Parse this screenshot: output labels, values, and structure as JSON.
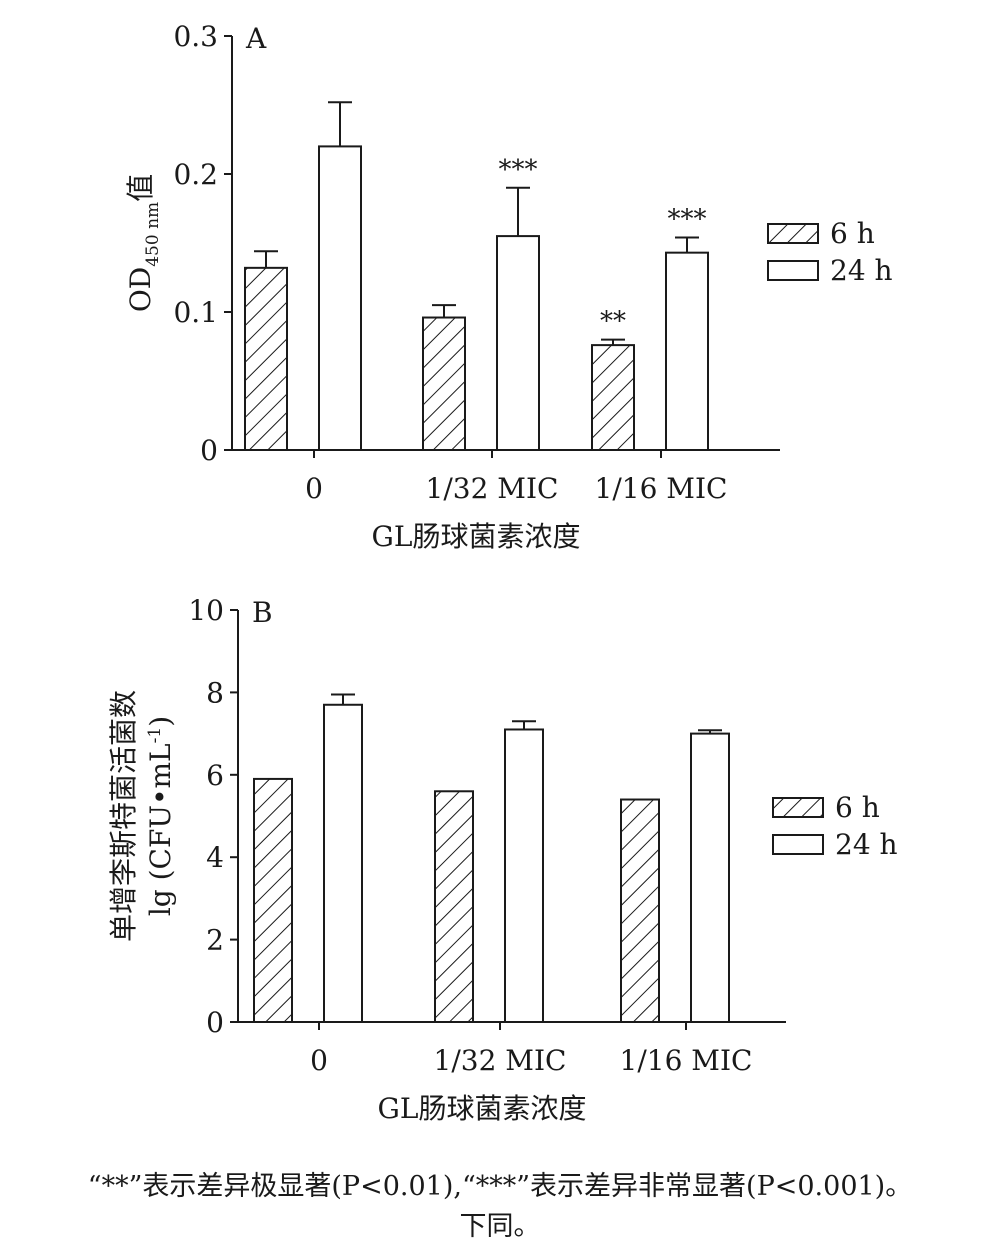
{
  "chart_data": [
    {
      "type": "bar",
      "panel_label": "A",
      "ylabel_main": "OD",
      "ylabel_sub": "450 nm",
      "ylabel_suffix": "值",
      "xlabel": "GL肠球菌素浓度",
      "categories": [
        "0",
        "1/32 MIC",
        "1/16 MIC"
      ],
      "ylim": [
        0,
        0.3
      ],
      "yticks": [
        "0",
        "0.1",
        "0.2",
        "0.3"
      ],
      "series": [
        {
          "name": "6 h",
          "values": [
            0.132,
            0.096,
            0.076
          ],
          "errors": [
            0.012,
            0.009,
            0.004
          ],
          "significance": [
            "",
            "",
            "**"
          ]
        },
        {
          "name": "24 h",
          "values": [
            0.22,
            0.155,
            0.143
          ],
          "errors": [
            0.032,
            0.035,
            0.011
          ],
          "significance": [
            "",
            "***",
            "***"
          ]
        }
      ],
      "legend": "right"
    },
    {
      "type": "bar",
      "panel_label": "B",
      "ylabel_line1": "单增李斯特菌活菌数",
      "ylabel_line2": "lg (CFU•mL",
      "ylabel_sup": "-1",
      "ylabel_close": ")",
      "xlabel": "GL肠球菌素浓度",
      "categories": [
        "0",
        "1/32 MIC",
        "1/16 MIC"
      ],
      "ylim": [
        0,
        10
      ],
      "yticks": [
        "0",
        "2",
        "4",
        "6",
        "8",
        "10"
      ],
      "series": [
        {
          "name": "6 h",
          "values": [
            5.9,
            5.6,
            5.4
          ],
          "errors": [
            0,
            0,
            0
          ],
          "significance": [
            "",
            "",
            ""
          ]
        },
        {
          "name": "24 h",
          "values": [
            7.7,
            7.1,
            7.0
          ],
          "errors": [
            0.25,
            0.2,
            0.08
          ],
          "significance": [
            "",
            "",
            ""
          ]
        }
      ],
      "legend": "right"
    }
  ],
  "caption": {
    "line1": "“**”表示差异极显著(P<0.01),“***”表示差异非常显著(P<0.001)。",
    "line2": "下同。"
  },
  "colors": {
    "ink": "#1a1a1a",
    "fill": "#ffffff"
  }
}
